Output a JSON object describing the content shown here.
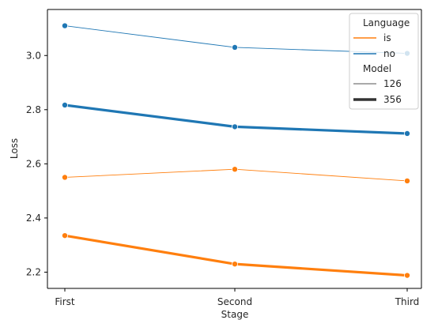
{
  "chart_data": {
    "type": "line",
    "categories": [
      "First",
      "Second",
      "Third"
    ],
    "xlabel": "Stage",
    "ylabel": "Loss",
    "ylim": [
      2.14,
      3.17
    ],
    "yticks": [
      2.2,
      2.4,
      2.6,
      2.8,
      3.0
    ],
    "ytick_labels": [
      "2.2",
      "2.4",
      "2.6",
      "2.8",
      "3.0"
    ],
    "grid": false,
    "legend_placement": "top-right",
    "colors": {
      "is": "#ff7f0e",
      "no": "#1f77b4"
    },
    "series": [
      {
        "language": "is",
        "model": "126",
        "values": [
          2.55,
          2.58,
          2.537
        ]
      },
      {
        "language": "is",
        "model": "356",
        "values": [
          2.335,
          2.23,
          2.188
        ]
      },
      {
        "language": "no",
        "model": "126",
        "values": [
          3.11,
          3.03,
          3.008
        ]
      },
      {
        "language": "no",
        "model": "356",
        "values": [
          2.817,
          2.737,
          2.712
        ]
      }
    ],
    "legend": {
      "language_title": "Language",
      "language_entries": [
        {
          "label": "is",
          "color": "#ff7f0e"
        },
        {
          "label": "no",
          "color": "#1f77b4"
        }
      ],
      "model_title": "Model",
      "model_entries": [
        {
          "label": "126"
        },
        {
          "label": "356"
        }
      ]
    }
  }
}
